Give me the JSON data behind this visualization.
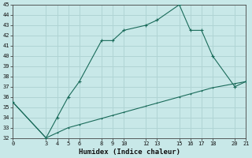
{
  "xlabel": "Humidex (Indice chaleur)",
  "background_color": "#c8e8e8",
  "grid_color": "#b0d4d4",
  "line_color": "#1a6b5a",
  "x_main": [
    0,
    3,
    4,
    5,
    6,
    8,
    9,
    10,
    12,
    13,
    15,
    16,
    17,
    18,
    20,
    21
  ],
  "y_main": [
    35.5,
    32.0,
    34.0,
    36.0,
    37.5,
    41.5,
    41.5,
    42.5,
    43.0,
    43.5,
    45.0,
    42.5,
    42.5,
    40.0,
    37.0,
    37.5
  ],
  "x_line2": [
    0,
    3,
    4,
    5,
    6,
    8,
    9,
    10,
    12,
    13,
    15,
    16,
    17,
    18,
    20,
    21
  ],
  "y_line2": [
    35.5,
    32.0,
    32.5,
    33.0,
    33.3,
    33.9,
    34.2,
    34.5,
    35.1,
    35.4,
    36.0,
    36.3,
    36.6,
    36.9,
    37.3,
    37.5
  ],
  "xlim": [
    0,
    21
  ],
  "ylim": [
    32,
    45
  ],
  "xticks": [
    0,
    3,
    4,
    5,
    6,
    8,
    9,
    10,
    12,
    13,
    15,
    16,
    17,
    18,
    20,
    21
  ],
  "yticks": [
    32,
    33,
    34,
    35,
    36,
    37,
    38,
    39,
    40,
    41,
    42,
    43,
    44,
    45
  ]
}
